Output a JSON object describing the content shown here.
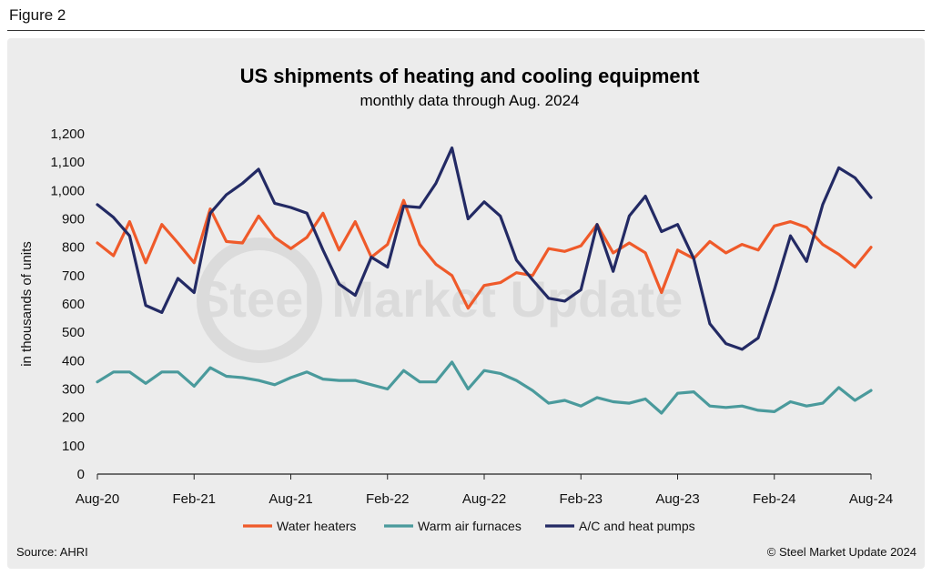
{
  "figure_label": "Figure 2",
  "source": "Source: AHRI",
  "copyright": "© Steel Market Update 2024",
  "watermark": "Steel Market Update",
  "colors": {
    "water_heaters": "#ef5a2a",
    "warm_air_furnaces": "#4a9a9c",
    "ac_heat_pumps": "#232a64"
  },
  "chart_data": {
    "type": "line",
    "title": "US shipments of heating and cooling equipment",
    "subtitle": "monthly data through Aug. 2024",
    "xlabel": "",
    "ylabel": "in thousands of units",
    "ylim": [
      0,
      1200
    ],
    "yticks": [
      0,
      100,
      200,
      300,
      400,
      500,
      600,
      700,
      800,
      900,
      "1,000",
      "1,100",
      "1,200"
    ],
    "x_tick_labels": [
      "Aug-20",
      "Feb-21",
      "Aug-21",
      "Feb-22",
      "Aug-22",
      "Feb-23",
      "Aug-23",
      "Feb-24",
      "Aug-24"
    ],
    "x": [
      "Aug-20",
      "Sep-20",
      "Oct-20",
      "Nov-20",
      "Dec-20",
      "Jan-21",
      "Feb-21",
      "Mar-21",
      "Apr-21",
      "May-21",
      "Jun-21",
      "Jul-21",
      "Aug-21",
      "Sep-21",
      "Oct-21",
      "Nov-21",
      "Dec-21",
      "Jan-22",
      "Feb-22",
      "Mar-22",
      "Apr-22",
      "May-22",
      "Jun-22",
      "Jul-22",
      "Aug-22",
      "Sep-22",
      "Oct-22",
      "Nov-22",
      "Dec-22",
      "Jan-23",
      "Feb-23",
      "Mar-23",
      "Apr-23",
      "May-23",
      "Jun-23",
      "Jul-23",
      "Aug-23",
      "Sep-23",
      "Oct-23",
      "Nov-23",
      "Dec-23",
      "Jan-24",
      "Feb-24",
      "Mar-24",
      "Apr-24",
      "May-24",
      "Jun-24",
      "Jul-24",
      "Aug-24"
    ],
    "legend_position": "bottom",
    "grid": false,
    "series": [
      {
        "name": "Water heaters",
        "color_key": "water_heaters",
        "values": [
          815,
          770,
          890,
          745,
          880,
          815,
          745,
          935,
          820,
          815,
          910,
          835,
          795,
          835,
          920,
          790,
          890,
          765,
          810,
          965,
          810,
          740,
          700,
          585,
          665,
          675,
          710,
          700,
          795,
          785,
          805,
          880,
          780,
          815,
          780,
          640,
          790,
          760,
          820,
          780,
          810,
          790,
          875,
          890,
          870,
          810,
          775,
          730,
          800
        ]
      },
      {
        "name": "Warm air furnaces",
        "color_key": "warm_air_furnaces",
        "values": [
          325,
          360,
          360,
          320,
          360,
          360,
          310,
          375,
          345,
          340,
          330,
          315,
          340,
          360,
          335,
          330,
          330,
          315,
          300,
          365,
          325,
          325,
          395,
          300,
          365,
          355,
          330,
          295,
          250,
          260,
          240,
          270,
          255,
          250,
          265,
          215,
          285,
          290,
          240,
          235,
          240,
          225,
          220,
          255,
          240,
          250,
          305,
          260,
          295
        ]
      },
      {
        "name": "A/C and heat pumps",
        "color_key": "ac_heat_pumps",
        "values": [
          950,
          905,
          840,
          595,
          570,
          690,
          640,
          920,
          985,
          1025,
          1075,
          955,
          940,
          920,
          790,
          670,
          630,
          765,
          730,
          945,
          940,
          1025,
          1150,
          900,
          960,
          910,
          755,
          685,
          620,
          610,
          650,
          880,
          715,
          910,
          980,
          855,
          880,
          760,
          530,
          460,
          440,
          480,
          650,
          840,
          750,
          950,
          1080,
          1045,
          975
        ]
      }
    ]
  }
}
